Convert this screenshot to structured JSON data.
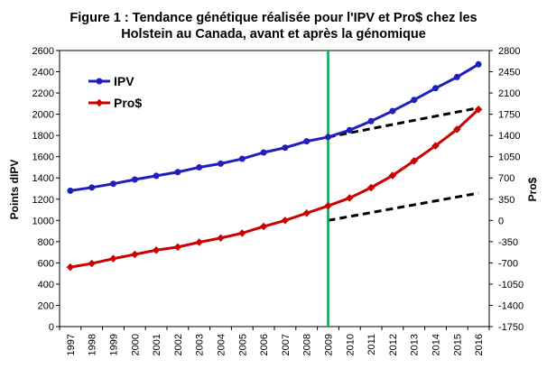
{
  "chart_data": {
    "type": "line",
    "title_line1": "Figure 1 : Tendance génétique réalisée pour l'IPV et Pro$ chez les",
    "title_line2": "Holstein au Canada, avant et après la génomique",
    "x": [
      "1997",
      "1998",
      "1999",
      "2000",
      "2001",
      "2002",
      "2003",
      "2004",
      "2005",
      "2006",
      "2007",
      "2008",
      "2009",
      "2010",
      "2011",
      "2012",
      "2013",
      "2014",
      "2015",
      "2016"
    ],
    "ylabel_left": "Points dIPV",
    "ylabel_right": "Pro$",
    "ylim_left": [
      0,
      2600
    ],
    "ylim_right": [
      -1750,
      2800
    ],
    "yticks_left": [
      0,
      200,
      400,
      600,
      800,
      1000,
      1200,
      1400,
      1600,
      1800,
      2000,
      2200,
      2400,
      2600
    ],
    "yticks_right": [
      -1750,
      -1400,
      -1050,
      -700,
      -350,
      0,
      350,
      700,
      1050,
      1400,
      1750,
      2100,
      2450,
      2800
    ],
    "grid": false,
    "legend_position": "top-left",
    "marker_year": "2009",
    "series": [
      {
        "name": "IPV",
        "axis": "left",
        "color": "#1f1fbf",
        "values": [
          1280,
          1310,
          1345,
          1385,
          1420,
          1455,
          1500,
          1535,
          1580,
          1640,
          1685,
          1745,
          1785,
          1850,
          1935,
          2030,
          2135,
          2245,
          2350,
          2470
        ]
      },
      {
        "name": "Pro$",
        "axis": "right",
        "color": "#cc0000",
        "values": [
          -770,
          -710,
          -630,
          -560,
          -490,
          -440,
          -360,
          -290,
          -210,
          -100,
          0,
          120,
          240,
          370,
          540,
          740,
          980,
          1230,
          1500,
          1830
        ]
      }
    ],
    "projections": [
      {
        "axis": "left",
        "color": "#000000",
        "from": [
          "2009",
          1785
        ],
        "to": [
          "2016",
          2060
        ]
      },
      {
        "axis": "right",
        "color": "#000000",
        "from": [
          "2009",
          0
        ],
        "to": [
          "2016",
          450
        ]
      }
    ],
    "vline_color": "#00a650"
  }
}
